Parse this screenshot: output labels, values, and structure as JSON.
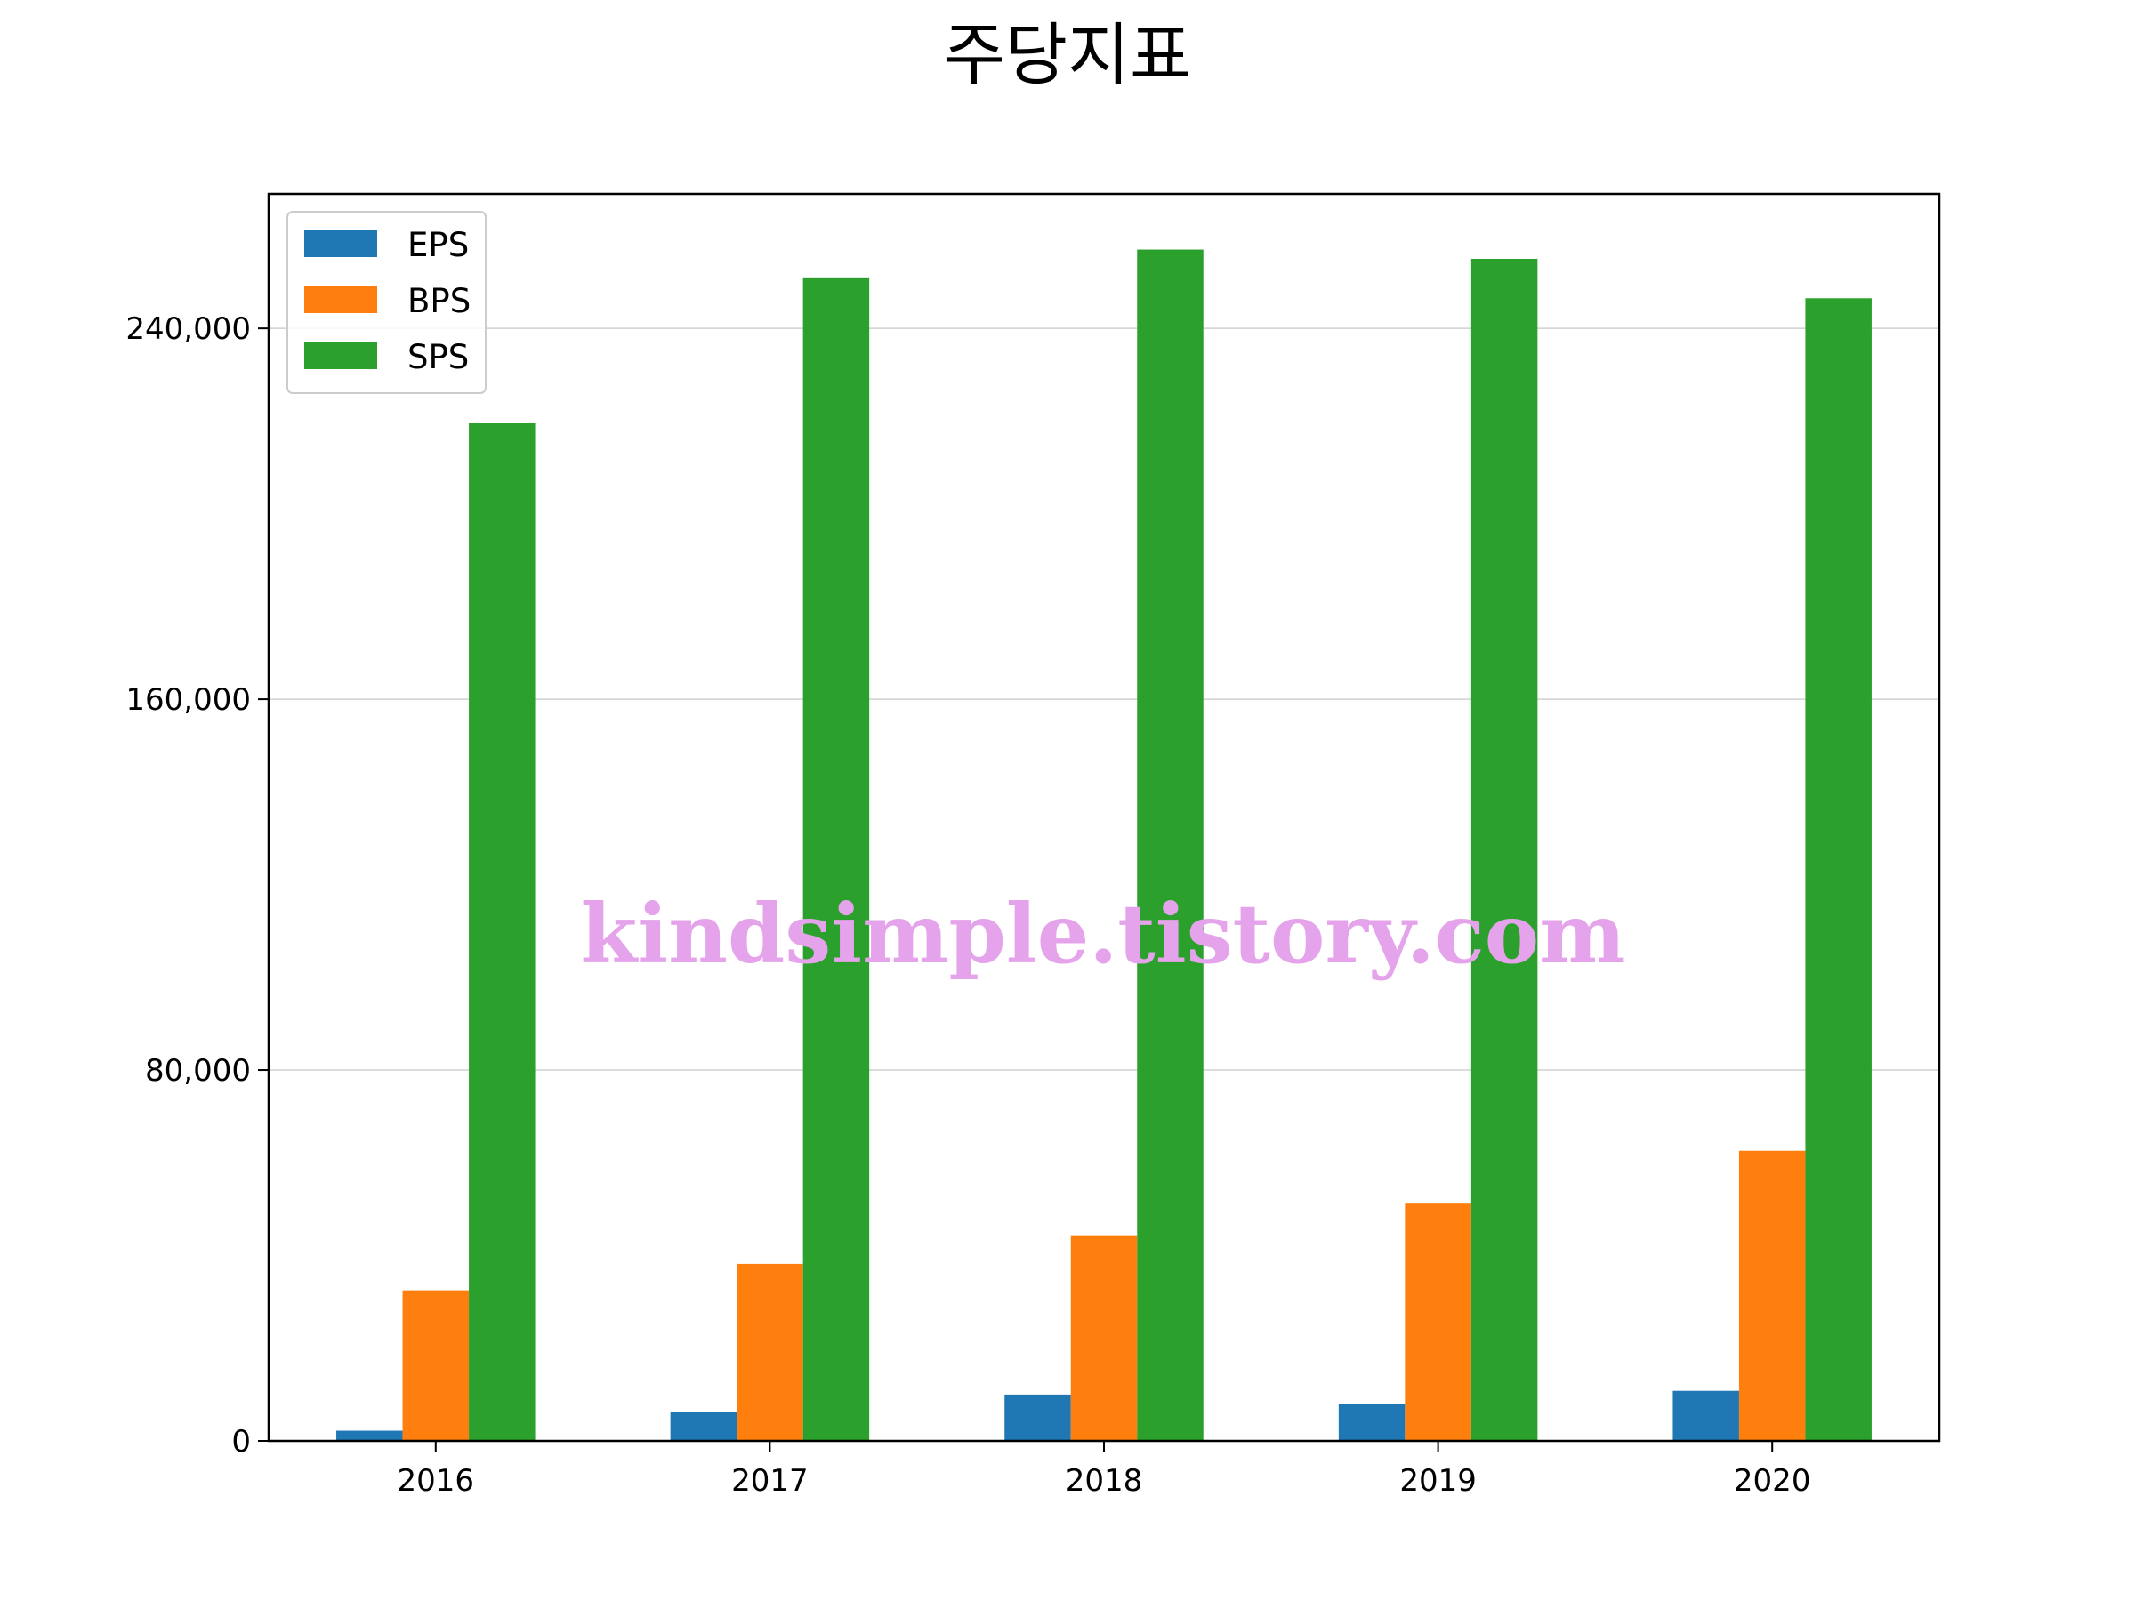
{
  "chart_data": {
    "type": "bar",
    "title": "주당지표",
    "xlabel": "",
    "ylabel": "",
    "categories": [
      "2016",
      "2017",
      "2018",
      "2019",
      "2020"
    ],
    "series": [
      {
        "name": "EPS",
        "color": "#1f77b4",
        "values": [
          2200,
          6200,
          10000,
          8000,
          10800
        ]
      },
      {
        "name": "BPS",
        "color": "#ff7f0e",
        "values": [
          32500,
          38200,
          44200,
          51200,
          62600
        ]
      },
      {
        "name": "SPS",
        "color": "#2ca02c",
        "values": [
          219500,
          251000,
          257000,
          255000,
          246500
        ]
      }
    ],
    "ylim": [
      0,
      269000
    ],
    "yticks": [
      0,
      80000,
      160000,
      240000
    ],
    "ytick_labels": [
      "0",
      "80,000",
      "160,000",
      "240,000"
    ],
    "grid": "y",
    "legend_position": "top-left",
    "watermark": "kindsimple.tistory.com"
  }
}
